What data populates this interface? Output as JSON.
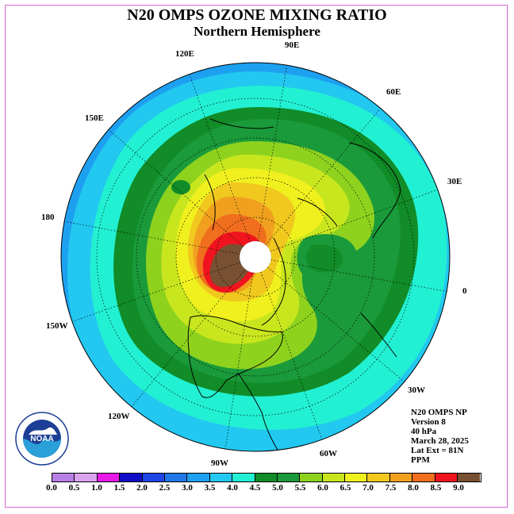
{
  "title": "N20 OMPS OZONE MIXING RATIO",
  "subtitle": "Northern Hemisphere",
  "longitude_labels": [
    {
      "text": "90E",
      "name": "lon-label-90e"
    },
    {
      "text": "60E",
      "name": "lon-label-60e"
    },
    {
      "text": "30E",
      "name": "lon-label-30e"
    },
    {
      "text": "0",
      "name": "lon-label-0"
    },
    {
      "text": "30W",
      "name": "lon-label-30w"
    },
    {
      "text": "60W",
      "name": "lon-label-60w"
    },
    {
      "text": "90W",
      "name": "lon-label-90w"
    },
    {
      "text": "120W",
      "name": "lon-label-120w"
    },
    {
      "text": "150W",
      "name": "lon-label-150w"
    },
    {
      "text": "180",
      "name": "lon-label-180"
    },
    {
      "text": "150E",
      "name": "lon-label-150e"
    },
    {
      "text": "120E",
      "name": "lon-label-120e"
    }
  ],
  "info": {
    "line1": "N20 OMPS NP",
    "line2": "Version 8",
    "line3": "40 hPa",
    "line4": "March 28, 2025",
    "line5": "Lat Ext = 81N",
    "line6": "PPM"
  },
  "colorbar": {
    "ticks": [
      "0.0",
      "0.5",
      "1.0",
      "1.5",
      "2.0",
      "2.5",
      "3.0",
      "3.5",
      "4.0",
      "4.5",
      "5.0",
      "5.5",
      "6.0",
      "6.5",
      "7.0",
      "7.5",
      "8.0",
      "8.5",
      "9.0"
    ],
    "colors": [
      "#b57fe6",
      "#d9a3ef",
      "#e619e6",
      "#1010c8",
      "#1e46e6",
      "#1e78e6",
      "#1ea0f0",
      "#22c8f0",
      "#22f0d2",
      "#118c28",
      "#1a9a3a",
      "#8ed21e",
      "#c8e61e",
      "#f0f01e",
      "#f0c81e",
      "#f0a01e",
      "#f06e1e",
      "#f0141e",
      "#785032"
    ]
  },
  "logo": {
    "text": "NOAA"
  }
}
